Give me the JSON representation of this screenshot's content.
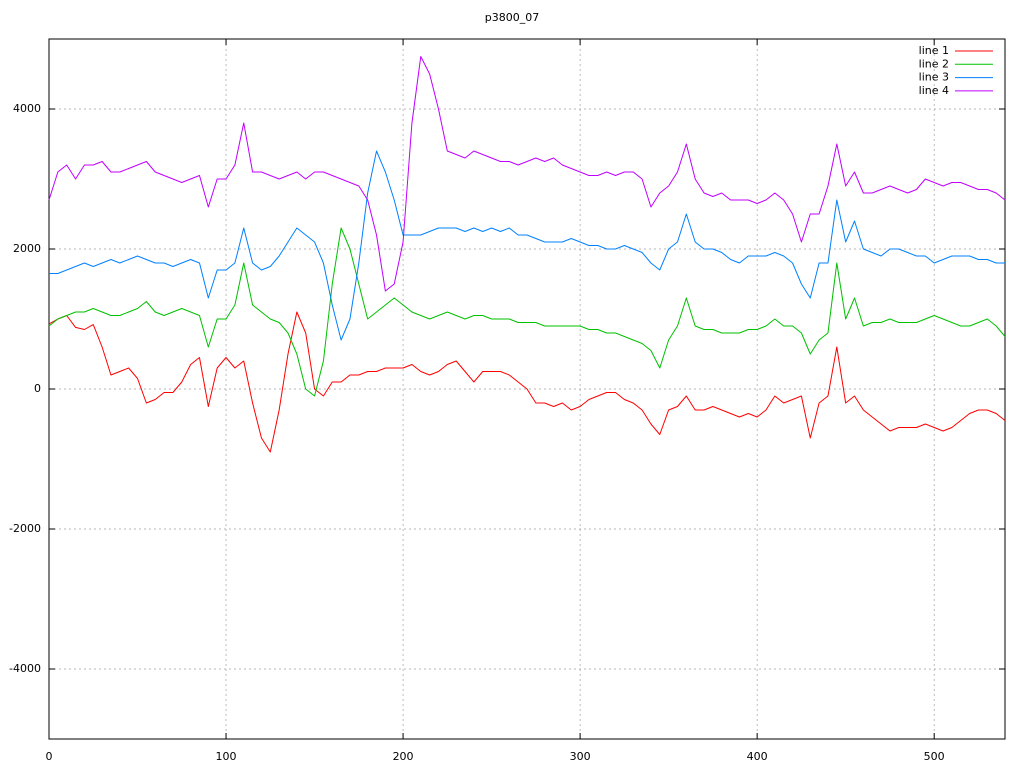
{
  "chart_data": {
    "type": "line",
    "title": "p3800_07",
    "x": [
      0,
      5,
      10,
      15,
      20,
      25,
      30,
      35,
      40,
      45,
      50,
      55,
      60,
      65,
      70,
      75,
      80,
      85,
      90,
      95,
      100,
      105,
      110,
      115,
      120,
      125,
      130,
      135,
      140,
      145,
      150,
      155,
      160,
      165,
      170,
      175,
      180,
      185,
      190,
      195,
      200,
      205,
      210,
      215,
      220,
      225,
      230,
      235,
      240,
      245,
      250,
      255,
      260,
      265,
      270,
      275,
      280,
      285,
      290,
      295,
      300,
      305,
      310,
      315,
      320,
      325,
      330,
      335,
      340,
      345,
      350,
      355,
      360,
      365,
      370,
      375,
      380,
      385,
      390,
      395,
      400,
      405,
      410,
      415,
      420,
      425,
      430,
      435,
      440,
      445,
      450,
      455,
      460,
      465,
      470,
      475,
      480,
      485,
      490,
      495,
      500,
      505,
      510,
      515,
      520,
      525,
      530,
      535,
      540
    ],
    "series": [
      {
        "name": "line 1",
        "color": "#ff0000",
        "values": [
          930,
          1000,
          1050,
          880,
          850,
          920,
          600,
          200,
          250,
          300,
          150,
          -200,
          -150,
          -50,
          -50,
          100,
          350,
          450,
          -250,
          300,
          450,
          300,
          400,
          -200,
          -700,
          -900,
          -300,
          500,
          1100,
          800,
          0,
          -100,
          100,
          100,
          200,
          200,
          250,
          250,
          300,
          300,
          300,
          350,
          250,
          200,
          250,
          350,
          400,
          250,
          100,
          250,
          250,
          250,
          200,
          100,
          0,
          -200,
          -200,
          -250,
          -200,
          -300,
          -250,
          -150,
          -100,
          -50,
          -50,
          -150,
          -200,
          -300,
          -500,
          -650,
          -300,
          -250,
          -100,
          -300,
          -300,
          -250,
          -300,
          -350,
          -400,
          -350,
          -400,
          -300,
          -100,
          -200,
          -150,
          -100,
          -700,
          -200,
          -100,
          600,
          -200,
          -100,
          -300,
          -400,
          -500,
          -600,
          -550,
          -550,
          -550,
          -500,
          -550,
          -600,
          -550,
          -450,
          -350,
          -300,
          -300,
          -350,
          -450
        ]
      },
      {
        "name": "line 2",
        "color": "#00c000",
        "values": [
          900,
          1000,
          1050,
          1100,
          1100,
          1150,
          1100,
          1050,
          1050,
          1100,
          1150,
          1250,
          1100,
          1050,
          1100,
          1150,
          1100,
          1050,
          600,
          1000,
          1000,
          1200,
          1800,
          1200,
          1100,
          1000,
          950,
          800,
          500,
          0,
          -100,
          400,
          1500,
          2300,
          2000,
          1500,
          1000,
          1100,
          1200,
          1300,
          1200,
          1100,
          1050,
          1000,
          1050,
          1100,
          1050,
          1000,
          1050,
          1050,
          1000,
          1000,
          1000,
          950,
          950,
          950,
          900,
          900,
          900,
          900,
          900,
          850,
          850,
          800,
          800,
          750,
          700,
          650,
          550,
          300,
          700,
          900,
          1300,
          900,
          850,
          850,
          800,
          800,
          800,
          850,
          850,
          900,
          1000,
          900,
          900,
          800,
          500,
          700,
          800,
          1800,
          1000,
          1300,
          900,
          950,
          950,
          1000,
          950,
          950,
          950,
          1000,
          1050,
          1000,
          950,
          900,
          900,
          950,
          1000,
          900,
          750
        ]
      },
      {
        "name": "line 3",
        "color": "#0080ff",
        "values": [
          1650,
          1650,
          1700,
          1750,
          1800,
          1750,
          1800,
          1850,
          1800,
          1850,
          1900,
          1850,
          1800,
          1800,
          1750,
          1800,
          1850,
          1800,
          1300,
          1700,
          1700,
          1800,
          2300,
          1800,
          1700,
          1750,
          1900,
          2100,
          2300,
          2200,
          2100,
          1800,
          1200,
          700,
          1000,
          1800,
          2800,
          3400,
          3100,
          2700,
          2200,
          2200,
          2200,
          2250,
          2300,
          2300,
          2300,
          2250,
          2300,
          2250,
          2300,
          2250,
          2300,
          2200,
          2200,
          2150,
          2100,
          2100,
          2100,
          2150,
          2100,
          2050,
          2050,
          2000,
          2000,
          2050,
          2000,
          1950,
          1800,
          1700,
          2000,
          2100,
          2500,
          2100,
          2000,
          2000,
          1950,
          1850,
          1800,
          1900,
          1900,
          1900,
          1950,
          1900,
          1800,
          1500,
          1300,
          1800,
          1800,
          2700,
          2100,
          2400,
          2000,
          1950,
          1900,
          2000,
          2000,
          1950,
          1900,
          1900,
          1800,
          1850,
          1900,
          1900,
          1900,
          1850,
          1850,
          1800,
          1800
        ]
      },
      {
        "name": "line 4",
        "color": "#c000ff",
        "values": [
          2700,
          3100,
          3200,
          3000,
          3200,
          3200,
          3250,
          3100,
          3100,
          3150,
          3200,
          3250,
          3100,
          3050,
          3000,
          2950,
          3000,
          3050,
          2600,
          3000,
          3000,
          3200,
          3800,
          3100,
          3100,
          3050,
          3000,
          3050,
          3100,
          3000,
          3100,
          3100,
          3050,
          3000,
          2950,
          2900,
          2700,
          2200,
          1400,
          1500,
          2100,
          3800,
          4750,
          4500,
          4000,
          3400,
          3350,
          3300,
          3400,
          3350,
          3300,
          3250,
          3250,
          3200,
          3250,
          3300,
          3250,
          3300,
          3200,
          3150,
          3100,
          3050,
          3050,
          3100,
          3050,
          3100,
          3100,
          3000,
          2600,
          2800,
          2900,
          3100,
          3500,
          3000,
          2800,
          2750,
          2800,
          2700,
          2700,
          2700,
          2650,
          2700,
          2800,
          2700,
          2500,
          2100,
          2500,
          2500,
          2900,
          3500,
          2900,
          3100,
          2800,
          2800,
          2850,
          2900,
          2850,
          2800,
          2850,
          3000,
          2950,
          2900,
          2950,
          2950,
          2900,
          2850,
          2850,
          2800,
          2700
        ]
      }
    ],
    "xlim": [
      0,
      540
    ],
    "ylim": [
      -5000,
      5000
    ],
    "xticks": [
      0,
      100,
      200,
      300,
      400,
      500
    ],
    "yticks": [
      -4000,
      -2000,
      0,
      2000,
      4000
    ],
    "grid": true,
    "legend": "top-right"
  }
}
